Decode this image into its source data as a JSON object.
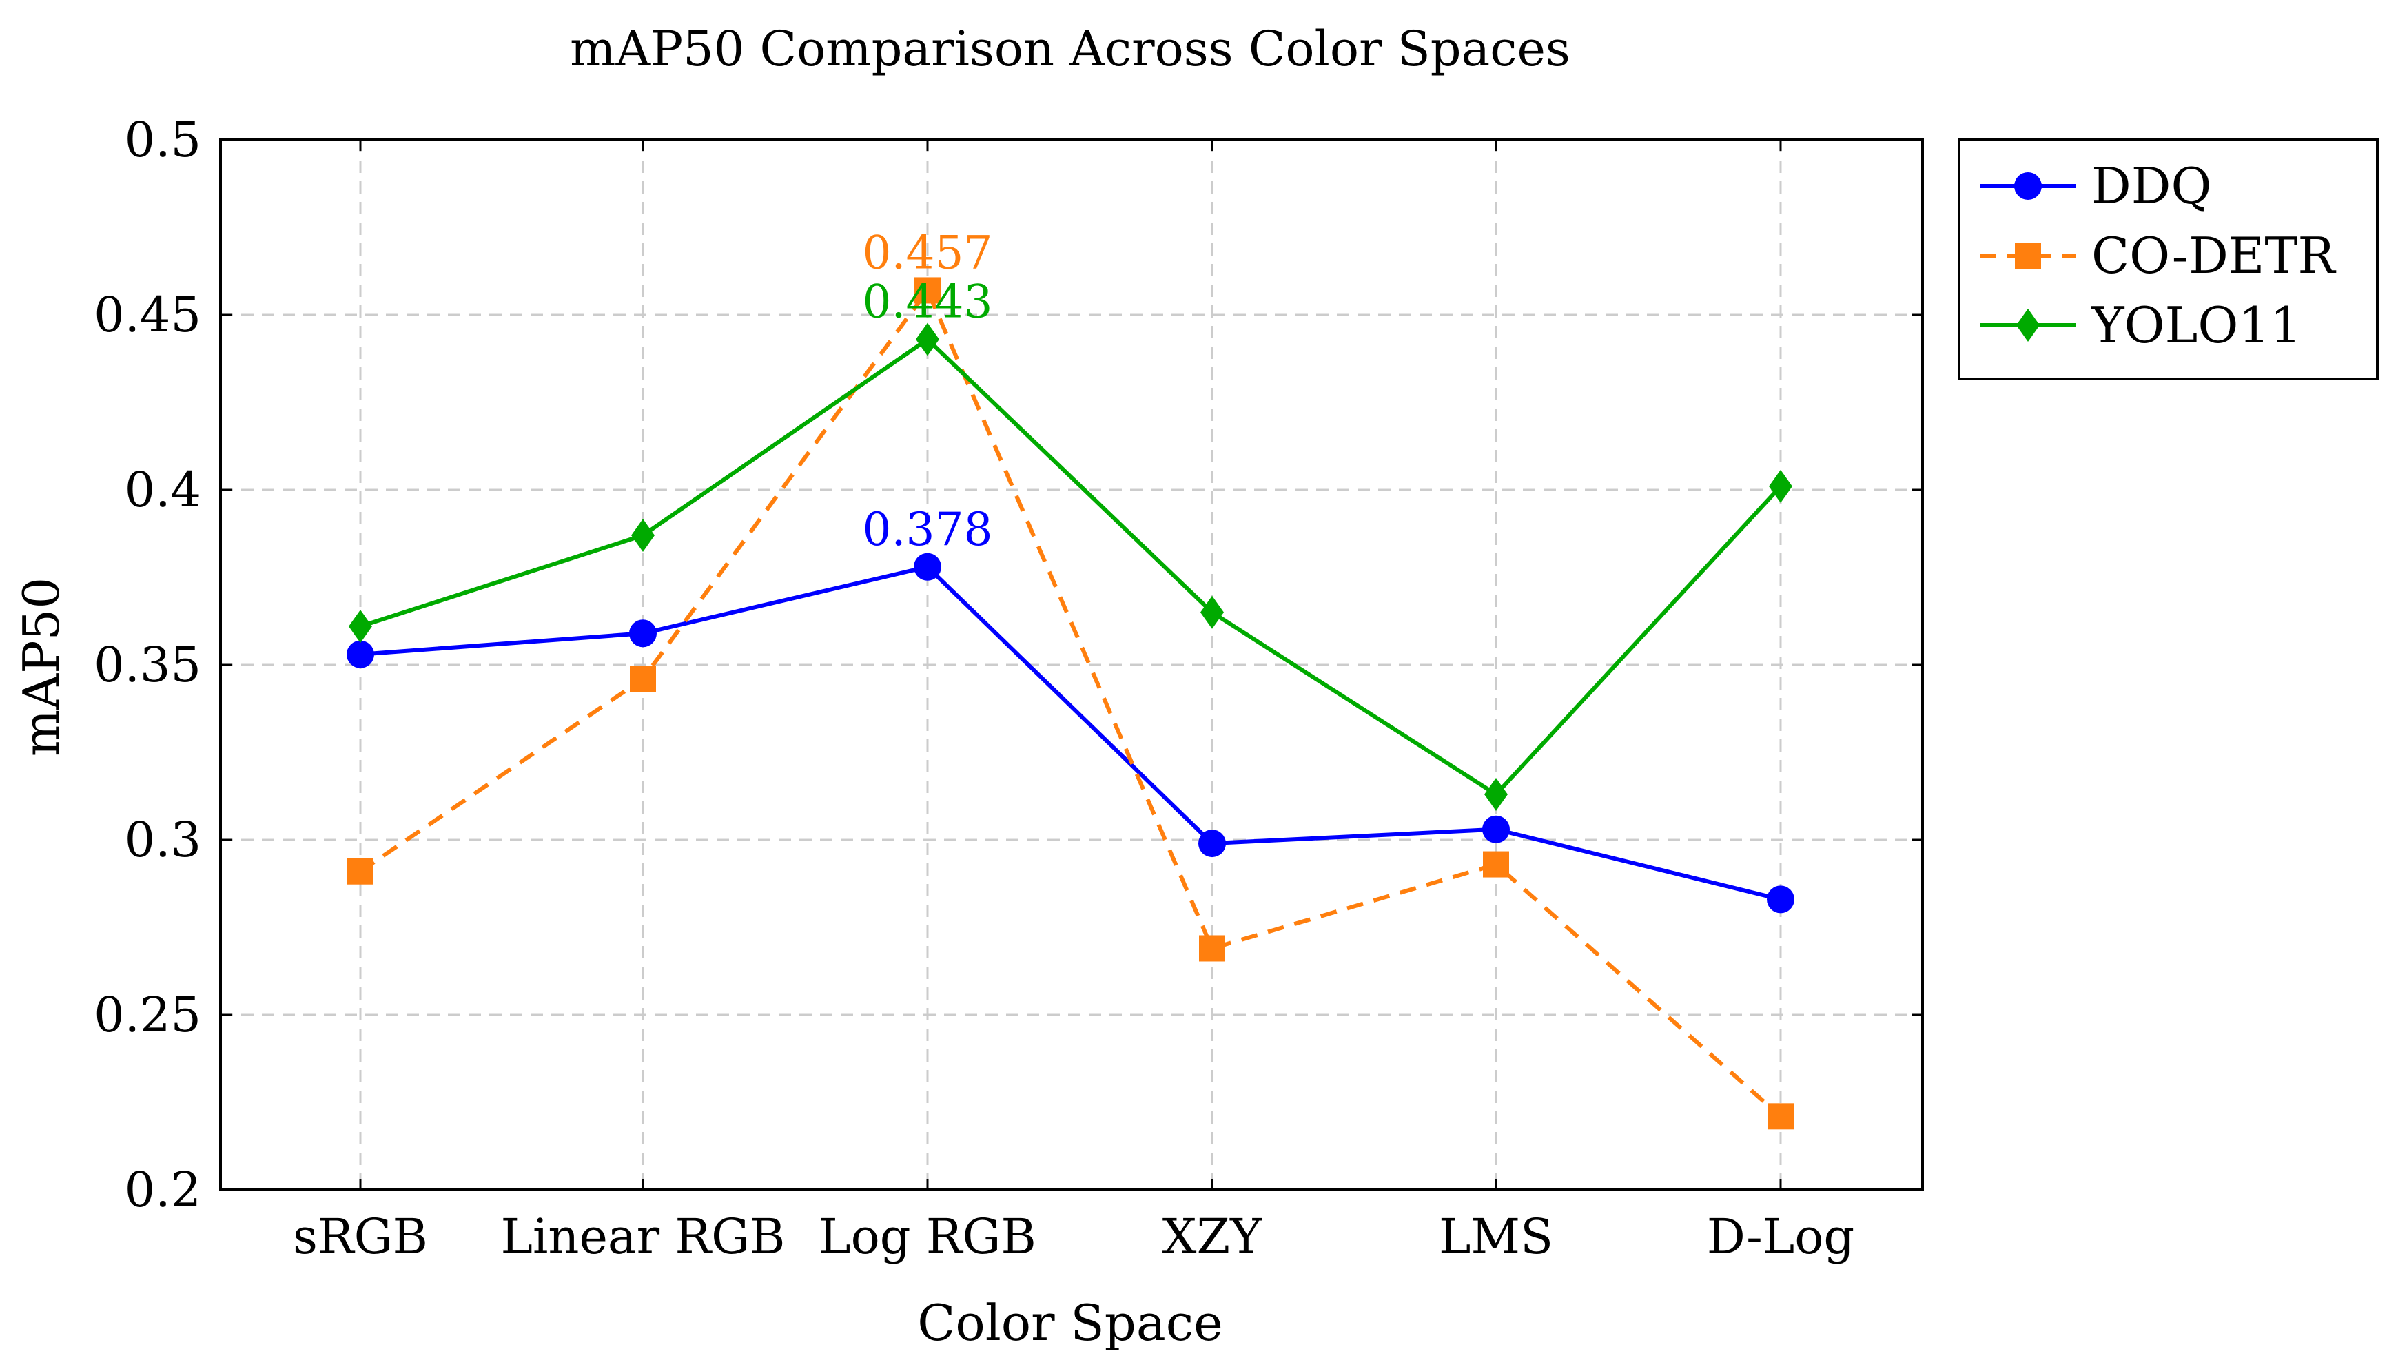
{
  "chart_data": {
    "type": "line",
    "title": "mAP50 Comparison Across Color Spaces",
    "xlabel": "Color Space",
    "ylabel": "mAP50",
    "categories": [
      "sRGB",
      "Linear RGB",
      "Log RGB",
      "XZY",
      "LMS",
      "D-Log"
    ],
    "ylim": [
      0.2,
      0.5
    ],
    "yticks": [
      0.2,
      0.25,
      0.3,
      0.35,
      0.4,
      0.45,
      0.5
    ],
    "ytick_labels": [
      "0.2",
      "0.25",
      "0.3",
      "0.35",
      "0.4",
      "0.45",
      "0.5"
    ],
    "grid": true,
    "legend_position": "outside-right-top",
    "series": [
      {
        "name": "DDQ",
        "color": "#0000ff",
        "style": "solid",
        "marker": "circle",
        "values": [
          0.353,
          0.359,
          0.378,
          0.299,
          0.303,
          0.283
        ],
        "annotation": {
          "category": "Log RGB",
          "value": 0.378,
          "text": "0.378"
        }
      },
      {
        "name": "CO-DETR",
        "color": "#ff7f0e",
        "style": "dashed",
        "marker": "square",
        "values": [
          0.291,
          0.346,
          0.457,
          0.269,
          0.293,
          0.221
        ],
        "annotation": {
          "category": "Log RGB",
          "value": 0.457,
          "text": "0.457"
        }
      },
      {
        "name": "YOLO11",
        "color": "#00aa00",
        "style": "solid",
        "marker": "diamond",
        "values": [
          0.361,
          0.387,
          0.443,
          0.365,
          0.313,
          0.401
        ],
        "annotation": {
          "category": "Log RGB",
          "value": 0.443,
          "text": "0.443"
        }
      }
    ]
  }
}
